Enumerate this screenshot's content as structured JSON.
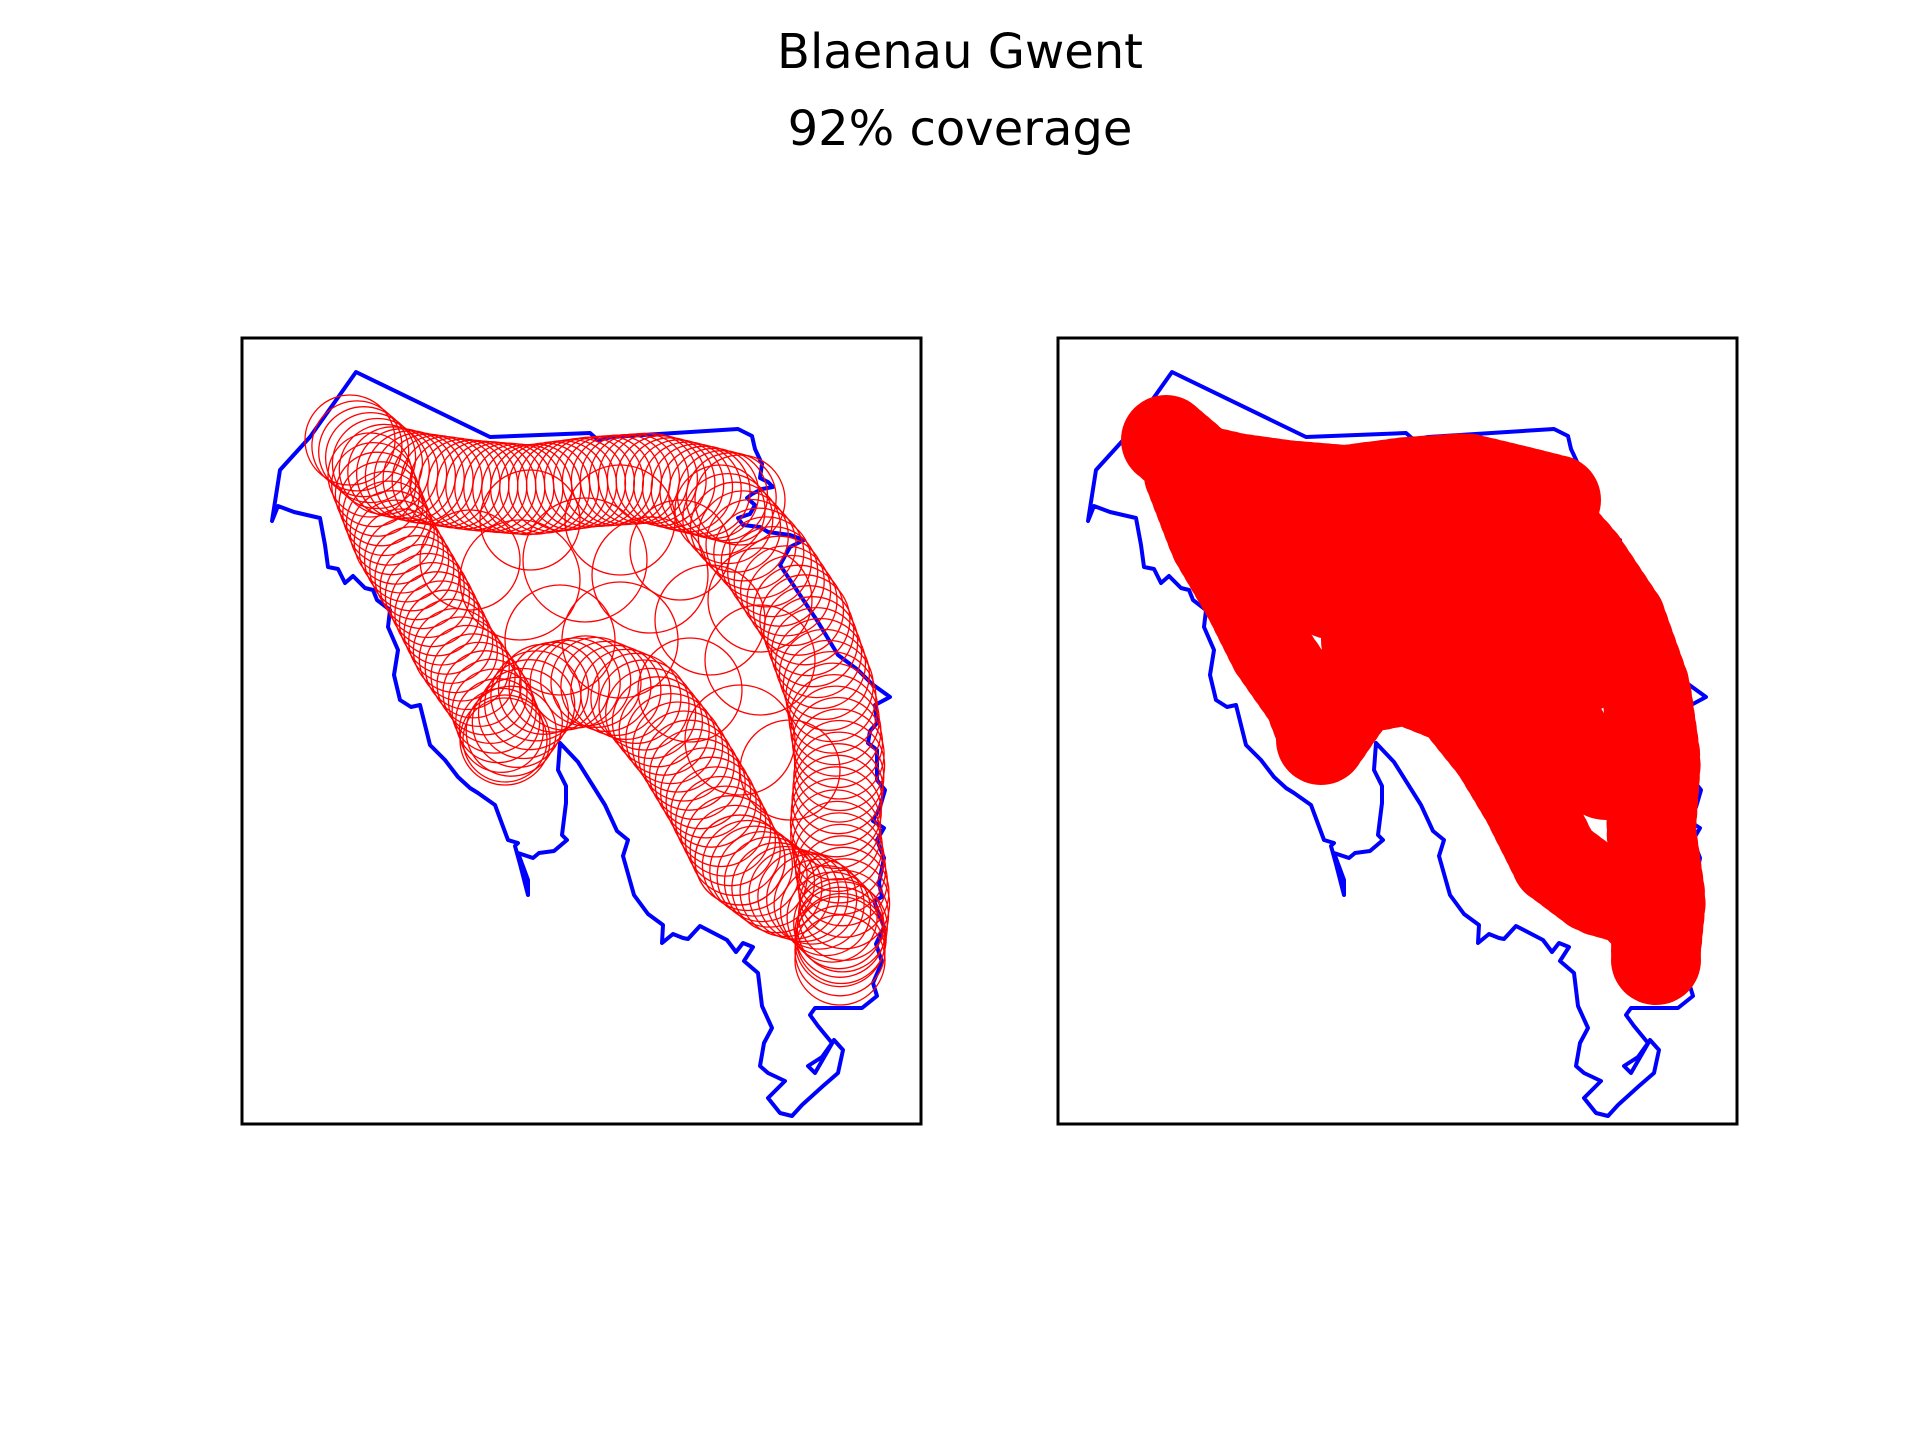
{
  "title": "Blaenau Gwent",
  "subtitle": "92% coverage",
  "colors": {
    "boundary": "#0000ff",
    "circles": "#ff0000",
    "frame": "#000000",
    "background": "#ffffff"
  },
  "panels": [
    {
      "id": "circles",
      "style": "outline"
    },
    {
      "id": "union",
      "style": "filled"
    }
  ],
  "coverage_percent": 92
}
